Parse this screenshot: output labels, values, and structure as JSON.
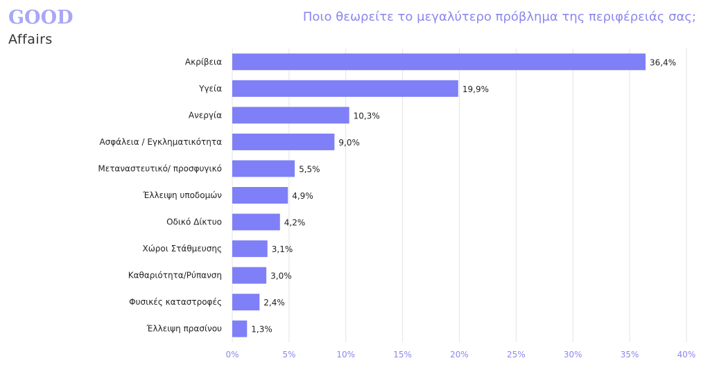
{
  "logo": {
    "good": "GOOD",
    "affairs": "Affairs"
  },
  "chart_data": {
    "type": "bar",
    "orientation": "horizontal",
    "title": "Ποιο θεωρείτε το μεγαλύτερο πρόβλημα της περιφέρειάς σας;",
    "categories": [
      "Ακρίβεια",
      "Υγεία",
      "Ανεργία",
      "Ασφάλεια / Εγκληματικότητα",
      "Μεταναστευτικό/ προσφυγικό",
      "Έλλειψη υποδομών",
      "Οδικό Δίκτυο",
      "Χώροι Στάθμευσης",
      "Καθαριότητα/Ρύπανση",
      "Φυσικές καταστροφές",
      "Έλλειψη πρασίνου"
    ],
    "values": [
      36.4,
      19.9,
      10.3,
      9.0,
      5.5,
      4.9,
      4.2,
      3.1,
      3.0,
      2.4,
      1.3
    ],
    "value_labels": [
      "36,4%",
      "19,9%",
      "10,3%",
      "9,0%",
      "5,5%",
      "4,9%",
      "4,2%",
      "3,1%",
      "3,0%",
      "2,4%",
      "1,3%"
    ],
    "xlim": [
      0,
      40
    ],
    "xticks": [
      0,
      5,
      10,
      15,
      20,
      25,
      30,
      35,
      40
    ],
    "xtick_labels": [
      "0%",
      "5%",
      "10%",
      "15%",
      "20%",
      "25%",
      "30%",
      "35%",
      "40%"
    ],
    "grid": true,
    "colors": {
      "bar": "#7f7ff7",
      "grid": "#e3e3e3",
      "title": "#8b86ee",
      "ticks": "#8b86ee",
      "logo": "#a9a7f5"
    }
  }
}
